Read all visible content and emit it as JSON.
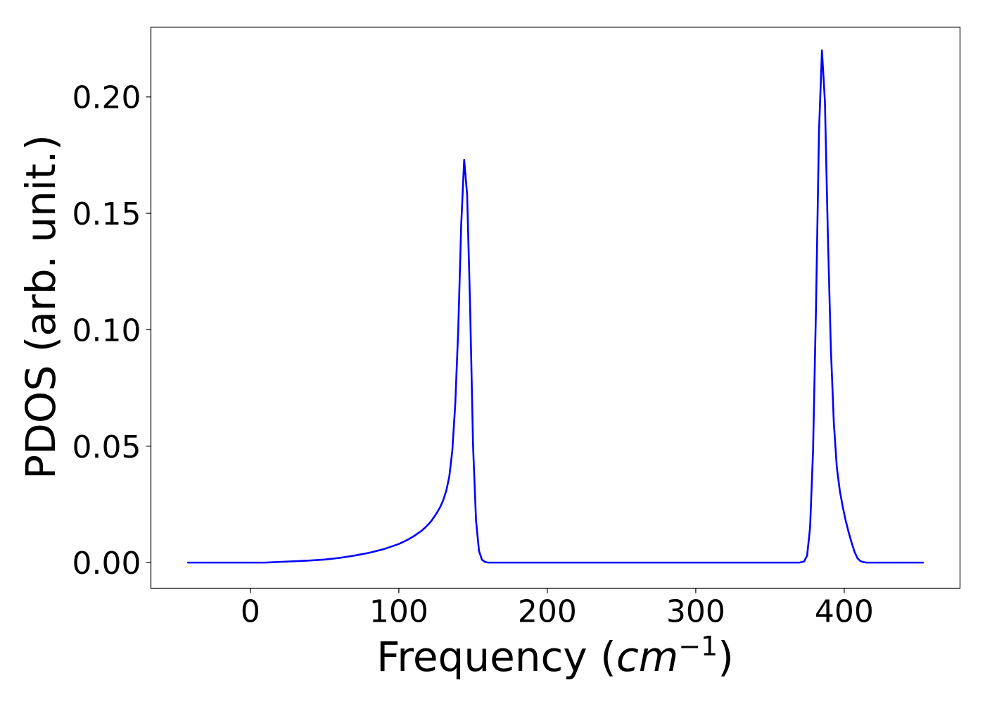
{
  "chart_data": {
    "type": "line",
    "title": "",
    "xlabel": "Frequency",
    "xlabel_unit": "cm",
    "xlabel_unit_exponent": "−1",
    "ylabel": "PDOS (arb. unit.)",
    "xlim": [
      -67,
      478
    ],
    "ylim": [
      -0.011,
      0.23
    ],
    "xticks": [
      0,
      100,
      200,
      300,
      400
    ],
    "xtick_labels": [
      "0",
      "100",
      "200",
      "300",
      "400"
    ],
    "yticks": [
      0.0,
      0.05,
      0.1,
      0.15,
      0.2
    ],
    "ytick_labels": [
      "0.00",
      "0.05",
      "0.10",
      "0.15",
      "0.20"
    ],
    "grid": false,
    "legend": "none",
    "series": [
      {
        "color": "#0000ff",
        "x": [
          -42,
          0,
          10,
          20,
          30,
          40,
          50,
          60,
          70,
          80,
          90,
          100,
          105,
          110,
          115,
          118,
          120,
          122,
          124,
          126,
          128,
          130,
          132,
          134,
          136,
          138,
          140,
          142,
          144,
          146,
          148,
          150,
          152,
          154,
          156,
          158,
          160,
          165,
          170,
          200,
          250,
          300,
          350,
          370,
          373,
          375,
          377,
          379,
          381,
          383,
          385,
          387,
          389,
          391,
          393,
          395,
          397,
          399,
          401,
          403,
          405,
          407,
          409,
          411,
          413,
          415,
          417,
          419,
          421,
          425,
          440,
          453
        ],
        "y": [
          0.0,
          0.0,
          0.0,
          0.0003,
          0.0006,
          0.0009,
          0.0013,
          0.002,
          0.003,
          0.0042,
          0.0058,
          0.008,
          0.0095,
          0.0113,
          0.0135,
          0.0152,
          0.0165,
          0.018,
          0.0198,
          0.0218,
          0.024,
          0.027,
          0.031,
          0.037,
          0.048,
          0.068,
          0.1,
          0.145,
          0.173,
          0.158,
          0.11,
          0.05,
          0.018,
          0.005,
          0.0012,
          0.0003,
          0.0,
          0.0,
          0.0,
          0.0,
          0.0,
          0.0,
          0.0,
          0.0,
          0.0005,
          0.003,
          0.015,
          0.048,
          0.11,
          0.185,
          0.22,
          0.198,
          0.14,
          0.092,
          0.06,
          0.041,
          0.031,
          0.024,
          0.018,
          0.013,
          0.0085,
          0.0045,
          0.0018,
          0.0006,
          0.0002,
          0.0,
          0.0,
          0.0,
          0.0,
          0.0,
          0.0,
          0.0
        ]
      }
    ]
  }
}
